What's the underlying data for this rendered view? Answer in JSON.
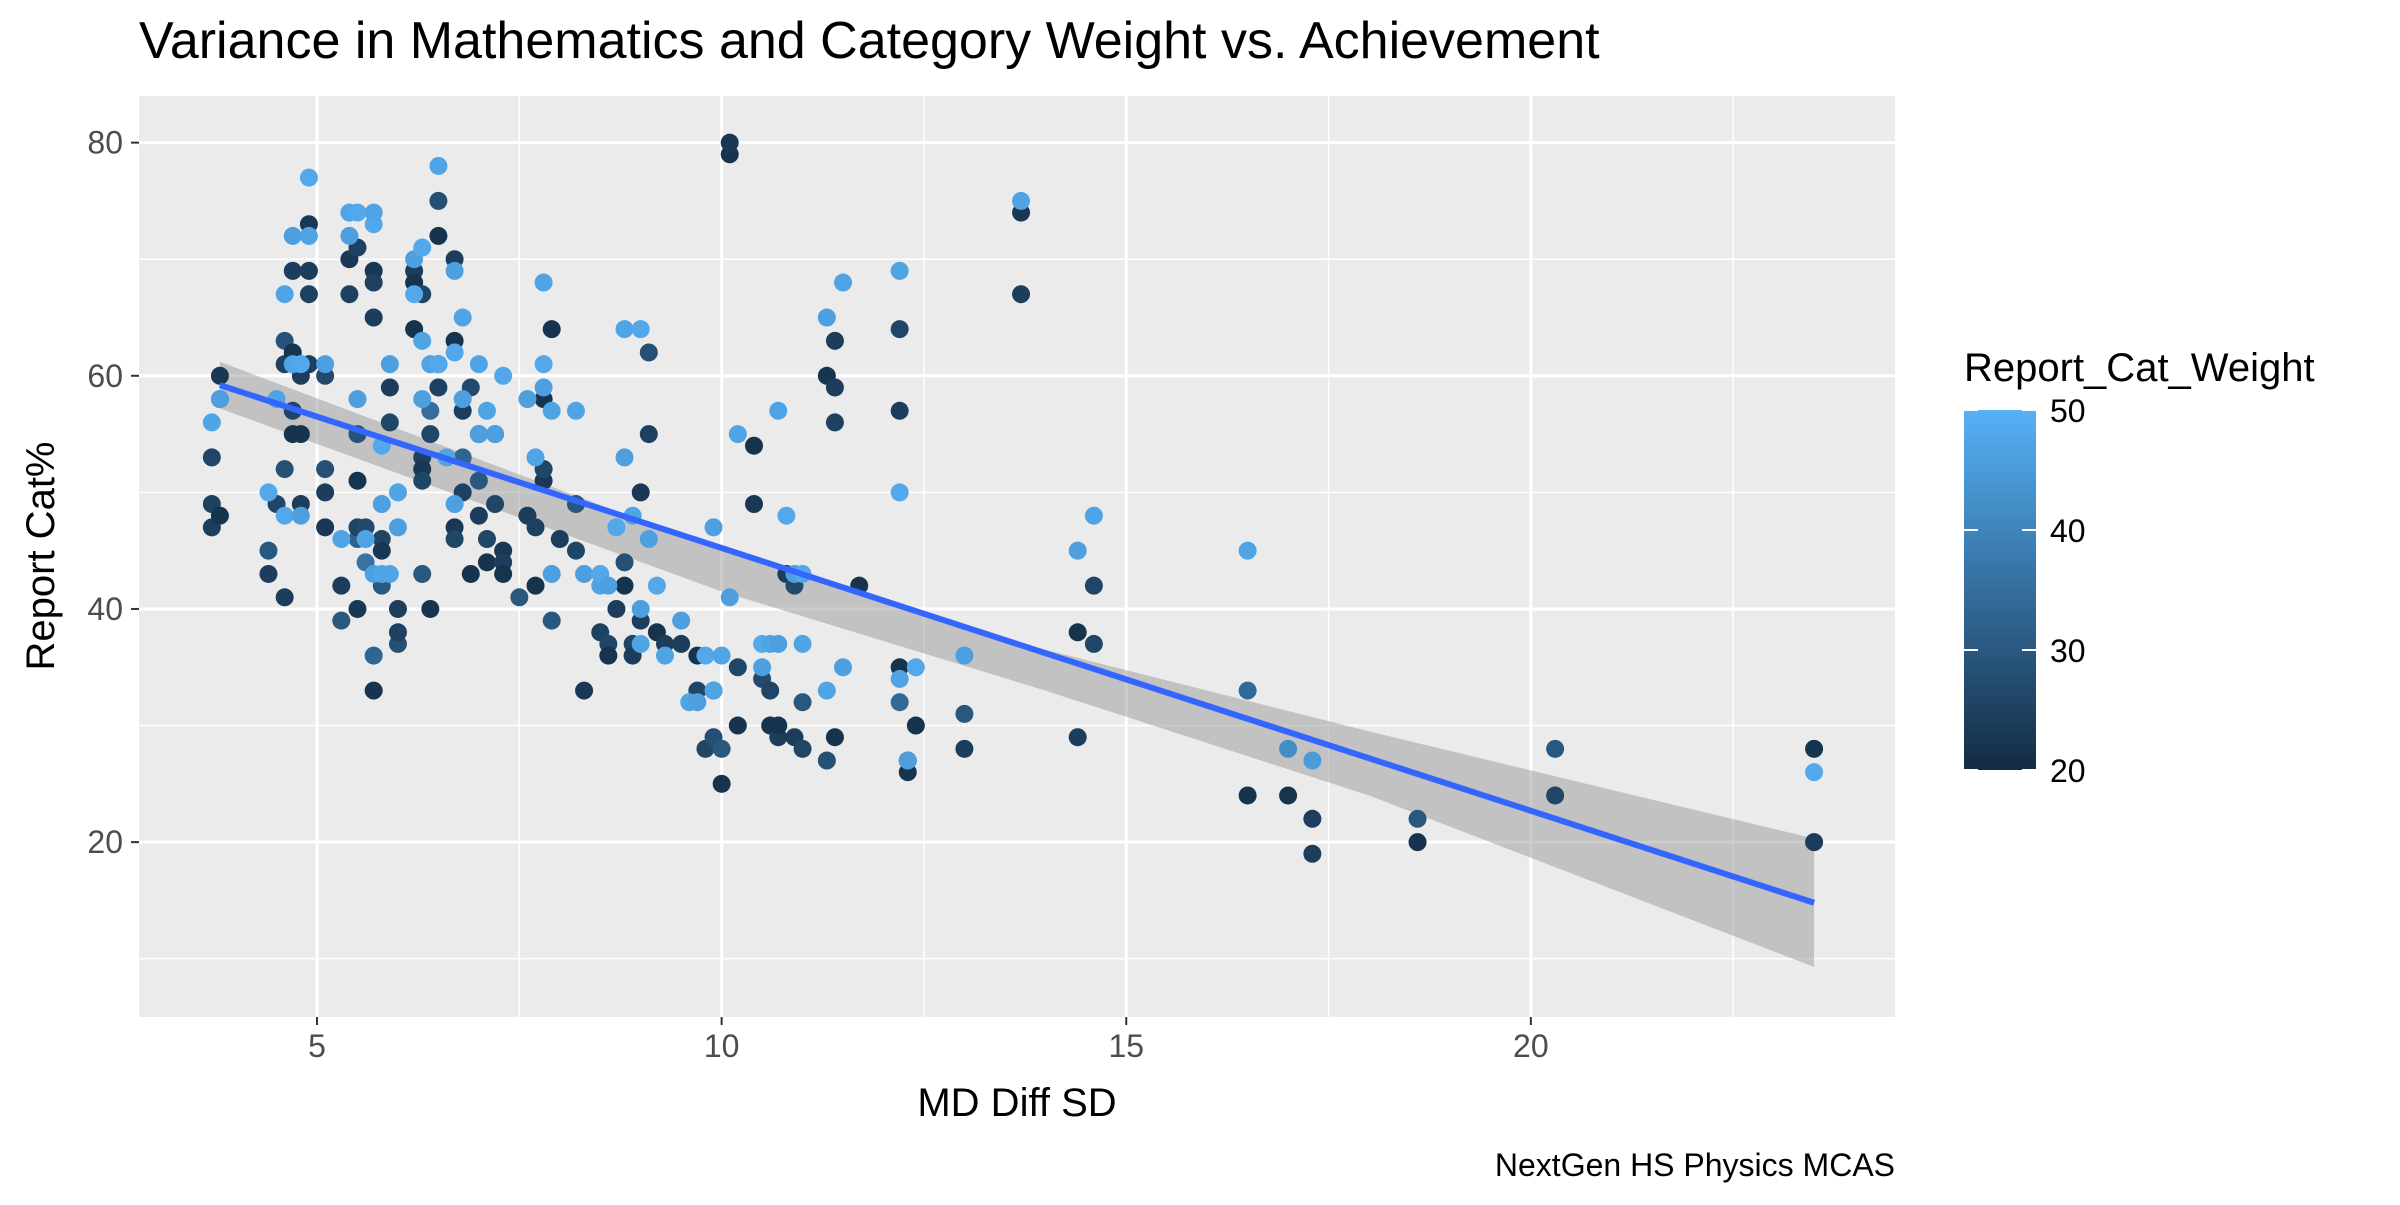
{
  "chart_data": {
    "type": "scatter",
    "title": "Variance in Mathematics and Category Weight vs. Achievement",
    "xlabel": "MD Diff SD",
    "ylabel": "Report Cat%",
    "caption": "NextGen HS Physics MCAS",
    "xlim": [
      2.8,
      24.5
    ],
    "ylim": [
      5,
      84
    ],
    "x_ticks": [
      5,
      10,
      15,
      20
    ],
    "y_ticks": [
      20,
      40,
      60,
      80
    ],
    "grid": true,
    "legend": {
      "title": "Report_Cat_Weight",
      "type": "colorbar",
      "placement": "right",
      "ticks": [
        20,
        30,
        40,
        50
      ],
      "range": [
        20,
        50
      ],
      "low_color": "#132B43",
      "high_color": "#56B1F7"
    },
    "trend": {
      "method": "lm",
      "line_color": "#3366FF",
      "band_color": "#999999",
      "line": [
        [
          3.8,
          59.2
        ],
        [
          23.5,
          14.8
        ]
      ],
      "band_upper": [
        [
          3.8,
          61.2
        ],
        [
          10,
          45.0
        ],
        [
          14,
          36.5
        ],
        [
          18,
          29.5
        ],
        [
          23.5,
          20.3
        ]
      ],
      "band_lower": [
        [
          3.8,
          57.2
        ],
        [
          10,
          41.5
        ],
        [
          14,
          33.0
        ],
        [
          18,
          24.0
        ],
        [
          23.5,
          9.3
        ]
      ]
    },
    "series": [
      {
        "x": [
          3.7,
          3.7,
          3.7,
          3.8,
          3.8,
          3.8,
          4.4,
          4.4,
          4.5,
          4.6,
          4.6,
          4.6,
          4.6,
          4.7,
          4.7,
          4.7,
          4.7,
          4.8,
          4.8,
          4.8,
          4.8,
          4.9,
          4.9,
          4.9,
          4.9,
          5.1,
          5.1,
          5.1,
          5.1,
          5.3,
          5.3,
          5.4,
          5.4,
          5.5,
          5.5,
          5.5,
          5.5,
          5.5,
          5.5,
          5.6,
          5.6,
          5.7,
          5.7,
          5.7,
          5.7,
          5.7,
          5.8,
          5.8,
          5.8,
          5.9,
          5.9,
          6.0,
          6.0,
          6.0,
          6.2,
          6.2,
          6.2,
          6.3,
          6.3,
          6.3,
          6.3,
          6.3,
          6.4,
          6.4,
          6.4,
          6.5,
          6.5,
          6.5,
          6.5,
          6.7,
          6.7,
          6.7,
          6.7,
          6.8,
          6.8,
          6.8,
          6.9,
          6.9,
          7.0,
          7.0,
          7.0,
          7.1,
          7.1,
          7.2,
          7.2,
          7.3,
          7.3,
          7.3,
          7.5,
          7.6,
          7.7,
          7.7,
          7.8,
          7.8,
          7.8,
          7.9,
          7.9,
          8.0,
          8.2,
          8.2,
          8.3,
          8.5,
          8.6,
          8.6,
          8.7,
          8.8,
          8.8,
          8.9,
          8.9,
          9.0,
          9.0,
          9.1,
          9.1,
          9.2,
          9.3,
          9.5,
          9.7,
          9.7,
          9.8,
          9.9,
          9.9,
          10.0,
          10.0,
          10.1,
          10.1,
          10.2,
          10.2,
          10.4,
          10.4,
          10.5,
          10.6,
          10.6,
          10.7,
          10.7,
          10.8,
          10.9,
          10.9,
          11.0,
          11.0,
          11.3,
          11.3,
          11.4,
          11.4,
          11.4,
          11.4,
          11.7,
          12.2,
          12.2,
          12.2,
          12.2,
          12.3,
          12.3,
          12.4,
          13.0,
          13.0,
          13.7,
          13.7,
          14.4,
          14.4,
          14.6,
          14.6,
          16.5,
          16.5,
          17.0,
          17.3,
          17.3,
          18.6,
          18.6,
          20.3,
          20.3,
          23.5,
          23.5
        ],
        "y": [
          49,
          47,
          53,
          48,
          60,
          58,
          43,
          45,
          49,
          52,
          61,
          63,
          41,
          62,
          69,
          55,
          57,
          60,
          61,
          55,
          49,
          73,
          69,
          67,
          61,
          60,
          50,
          52,
          47,
          42,
          39,
          70,
          67,
          40,
          46,
          47,
          51,
          71,
          55,
          44,
          47,
          69,
          68,
          65,
          36,
          33,
          42,
          46,
          45,
          56,
          59,
          37,
          38,
          40,
          69,
          68,
          64,
          67,
          53,
          52,
          51,
          43,
          40,
          55,
          57,
          75,
          72,
          59,
          61,
          63,
          70,
          47,
          46,
          57,
          53,
          50,
          43,
          59,
          55,
          51,
          48,
          46,
          44,
          55,
          49,
          45,
          44,
          43,
          41,
          48,
          47,
          42,
          51,
          52,
          58,
          64,
          39,
          46,
          45,
          49,
          33,
          38,
          37,
          36,
          40,
          44,
          42,
          37,
          36,
          50,
          39,
          55,
          62,
          38,
          37,
          37,
          33,
          36,
          28,
          29,
          33,
          28,
          25,
          79,
          80,
          30,
          35,
          54,
          49,
          34,
          30,
          33,
          29,
          30,
          43,
          29,
          42,
          32,
          28,
          27,
          60,
          56,
          59,
          29,
          63,
          42,
          64,
          57,
          32,
          35,
          27,
          26,
          30,
          28,
          31,
          74,
          67,
          29,
          38,
          37,
          42,
          33,
          24,
          24,
          22,
          19,
          20,
          22,
          24,
          28,
          20,
          28
        ],
        "c": [
          25,
          24,
          26,
          22,
          23,
          38,
          24,
          30,
          26,
          28,
          25,
          29,
          24,
          22,
          24,
          22,
          26,
          24,
          25,
          22,
          24,
          23,
          24,
          25,
          24,
          27,
          24,
          28,
          23,
          24,
          30,
          23,
          25,
          23,
          32,
          26,
          22,
          25,
          29,
          36,
          27,
          23,
          25,
          24,
          33,
          22,
          30,
          26,
          23,
          26,
          24,
          28,
          25,
          24,
          24,
          22,
          22,
          26,
          25,
          23,
          26,
          30,
          22,
          26,
          35,
          28,
          22,
          25,
          24,
          22,
          24,
          23,
          26,
          24,
          33,
          25,
          22,
          27,
          24,
          30,
          24,
          26,
          22,
          23,
          26,
          23,
          24,
          22,
          30,
          24,
          25,
          22,
          23,
          26,
          22,
          22,
          30,
          24,
          26,
          30,
          23,
          25,
          26,
          22,
          24,
          28,
          22,
          26,
          24,
          23,
          24,
          25,
          28,
          22,
          24,
          24,
          26,
          22,
          26,
          28,
          24,
          30,
          22,
          22,
          23,
          22,
          26,
          22,
          23,
          27,
          22,
          26,
          24,
          22,
          24,
          24,
          27,
          30,
          26,
          28,
          22,
          25,
          24,
          22,
          24,
          22,
          26,
          24,
          34,
          22,
          22,
          22,
          22,
          24,
          30,
          23,
          24,
          24,
          22,
          26,
          26,
          34,
          22,
          22,
          24,
          24,
          22,
          30,
          26,
          30,
          24,
          22
        ],
        "color_by": "Report_Cat_Weight"
      },
      {
        "x": [
          3.7,
          3.8,
          4.4,
          4.5,
          4.6,
          4.6,
          4.7,
          4.7,
          4.8,
          4.8,
          4.9,
          4.9,
          5.1,
          5.3,
          5.4,
          5.4,
          5.5,
          5.5,
          5.6,
          5.7,
          5.7,
          5.7,
          5.8,
          5.8,
          5.8,
          5.9,
          5.9,
          6.0,
          6.0,
          6.2,
          6.2,
          6.3,
          6.3,
          6.3,
          6.4,
          6.5,
          6.5,
          6.6,
          6.7,
          6.7,
          6.7,
          6.8,
          6.8,
          7.0,
          7.0,
          7.1,
          7.2,
          7.3,
          7.6,
          7.7,
          7.8,
          7.8,
          7.8,
          7.9,
          7.9,
          8.2,
          8.3,
          8.5,
          8.5,
          8.6,
          8.7,
          8.8,
          8.8,
          8.9,
          9.0,
          9.0,
          9.0,
          9.1,
          9.2,
          9.3,
          9.5,
          9.6,
          9.7,
          9.8,
          9.9,
          9.9,
          10.0,
          10.1,
          10.2,
          10.5,
          10.5,
          10.6,
          10.7,
          10.7,
          10.8,
          10.9,
          11.0,
          11.0,
          11.3,
          11.3,
          11.5,
          11.5,
          12.2,
          12.2,
          12.2,
          12.3,
          12.4,
          13.0,
          13.7,
          14.4,
          14.6,
          16.5,
          17.0,
          17.3,
          23.5
        ],
        "y": [
          56,
          58,
          50,
          58,
          67,
          48,
          72,
          61,
          61,
          48,
          77,
          72,
          61,
          46,
          74,
          72,
          74,
          58,
          46,
          73,
          74,
          43,
          49,
          54,
          43,
          61,
          43,
          50,
          47,
          67,
          70,
          63,
          71,
          58,
          61,
          78,
          61,
          53,
          69,
          62,
          49,
          65,
          58,
          61,
          55,
          57,
          55,
          60,
          58,
          53,
          68,
          61,
          59,
          57,
          43,
          57,
          43,
          42,
          43,
          42,
          47,
          53,
          64,
          48,
          64,
          40,
          37,
          46,
          42,
          36,
          39,
          32,
          32,
          36,
          33,
          47,
          36,
          41,
          55,
          35,
          37,
          37,
          57,
          37,
          48,
          43,
          37,
          43,
          33,
          65,
          68,
          35,
          69,
          50,
          34,
          27,
          35,
          36,
          75,
          45,
          48,
          45,
          28,
          27,
          26
        ],
        "c": [
          47,
          46,
          48,
          47,
          47,
          48,
          46,
          47,
          48,
          46,
          48,
          47,
          46,
          47,
          47,
          46,
          48,
          46,
          47,
          48,
          47,
          46,
          46,
          48,
          47,
          46,
          47,
          47,
          46,
          48,
          46,
          47,
          48,
          46,
          47,
          47,
          48,
          47,
          46,
          48,
          46,
          47,
          46,
          47,
          46,
          47,
          46,
          48,
          46,
          47,
          47,
          48,
          46,
          47,
          46,
          47,
          46,
          47,
          48,
          46,
          48,
          46,
          47,
          47,
          48,
          46,
          47,
          46,
          48,
          47,
          46,
          47,
          46,
          48,
          47,
          46,
          47,
          46,
          47,
          46,
          48,
          47,
          47,
          46,
          48,
          46,
          47,
          48,
          47,
          46,
          47,
          46,
          47,
          48,
          47,
          46,
          48,
          46,
          47,
          46,
          47,
          47,
          42,
          45,
          48
        ],
        "color_by": "Report_Cat_Weight"
      }
    ]
  }
}
